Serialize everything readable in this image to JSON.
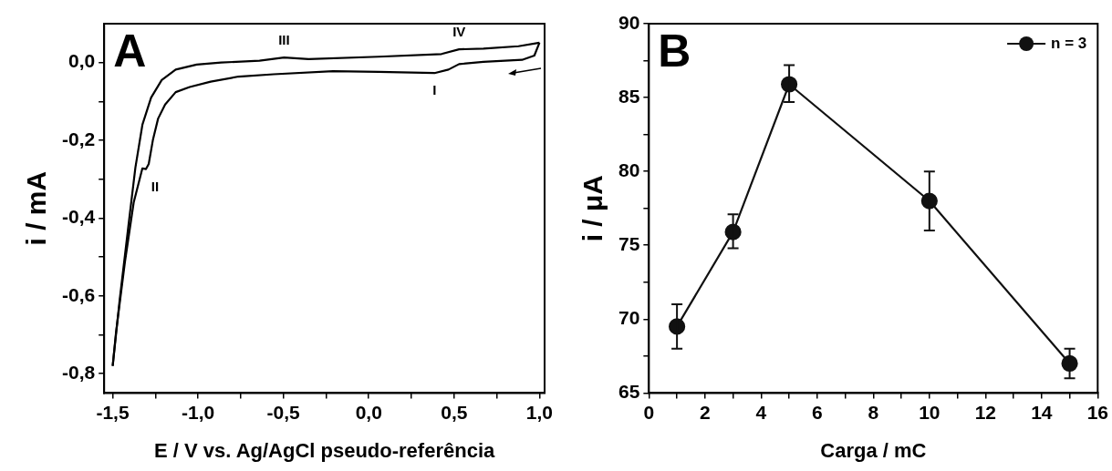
{
  "chart_data": [
    {
      "type": "line",
      "title": "A",
      "xlabel": "E / V vs. Ag/AgCl pseudo-referência",
      "ylabel": "i / mA",
      "xlim": [
        -1.55,
        1.03
      ],
      "ylim": [
        -0.85,
        0.1
      ],
      "xticks": [
        {
          "value": -1.5,
          "label": "-1,5"
        },
        {
          "value": -1.25,
          "label": null
        },
        {
          "value": -1.0,
          "label": "-1,0"
        },
        {
          "value": -0.75,
          "label": null
        },
        {
          "value": -0.5,
          "label": "-0,5"
        },
        {
          "value": -0.25,
          "label": null
        },
        {
          "value": 0,
          "label": "0,0"
        },
        {
          "value": 0.25,
          "label": null
        },
        {
          "value": 0.5,
          "label": "0,5"
        },
        {
          "value": 0.75,
          "label": null
        },
        {
          "value": 1.0,
          "label": "1,0"
        }
      ],
      "yticks": [
        {
          "value": -0.8,
          "label": "-0,8"
        },
        {
          "value": -0.7,
          "label": null
        },
        {
          "value": -0.6,
          "label": "-0,6"
        },
        {
          "value": -0.5,
          "label": null
        },
        {
          "value": -0.4,
          "label": "-0,4"
        },
        {
          "value": -0.3,
          "label": null
        },
        {
          "value": -0.2,
          "label": "-0,2"
        },
        {
          "value": -0.1,
          "label": null
        },
        {
          "value": 0,
          "label": "0,0"
        }
      ],
      "legend": false,
      "marker": "none",
      "grid": false,
      "annotations": [
        {
          "text": "I",
          "x": 0.385,
          "y": -0.027
        },
        {
          "text": "II",
          "x": -1.305,
          "y": -0.274
        },
        {
          "text": "III",
          "x": -0.496,
          "y": 0.013
        },
        {
          "text": "IV",
          "x": 0.529,
          "y": 0.034
        }
      ],
      "series": [
        {
          "color": "#000000",
          "x": [
            -1.5,
            -1.459,
            -1.408,
            -1.367,
            -1.326,
            -1.275,
            -1.213,
            -1.131,
            -1.008,
            -0.865,
            -0.64,
            -0.496,
            -0.352,
            0.057,
            0.426,
            0.529,
            0.672,
            0.877,
            1.0
          ],
          "values": [
            -0.78,
            -0.61,
            -0.42,
            -0.27,
            -0.16,
            -0.09,
            -0.045,
            -0.018,
            -0.005,
            0,
            0.005,
            0.013,
            0.009,
            0.015,
            0.022,
            0.034,
            0.036,
            0.042,
            0.051
          ]
        },
        {
          "color": "#000000",
          "x": [
            1.0,
            0.97,
            0.898,
            0.672,
            0.529,
            0.467,
            0.385,
            0.057,
            -0.209,
            -0.557,
            -0.762,
            -0.926,
            -1.049,
            -1.131,
            -1.193,
            -1.234,
            -1.264,
            -1.289,
            -1.305,
            -1.326,
            -1.377,
            -1.428,
            -1.48,
            -1.5
          ],
          "values": [
            0.051,
            0.018,
            0.007,
            0.002,
            -0.004,
            -0.018,
            -0.027,
            -0.024,
            -0.022,
            -0.03,
            -0.036,
            -0.049,
            -0.063,
            -0.076,
            -0.108,
            -0.144,
            -0.198,
            -0.261,
            -0.274,
            -0.272,
            -0.36,
            -0.512,
            -0.692,
            -0.78
          ]
        }
      ]
    },
    {
      "type": "line",
      "title": "B",
      "xlabel": "Carga / mC",
      "ylabel": "i / μA",
      "xlim": [
        0,
        16
      ],
      "ylim": [
        65,
        90
      ],
      "xticks": [
        0,
        {
          "value": 1,
          "label": null
        },
        2,
        {
          "value": 3,
          "label": null
        },
        4,
        {
          "value": 5,
          "label": null
        },
        6,
        {
          "value": 7,
          "label": null
        },
        8,
        {
          "value": 9,
          "label": null
        },
        10,
        {
          "value": 11,
          "label": null
        },
        12,
        {
          "value": 13,
          "label": null
        },
        14,
        {
          "value": 15,
          "label": null
        },
        16
      ],
      "yticks": [
        65,
        {
          "value": 67.5,
          "label": null
        },
        70,
        {
          "value": 72.5,
          "label": null
        },
        75,
        {
          "value": 77.5,
          "label": null
        },
        80,
        {
          "value": 82.5,
          "label": null
        },
        85,
        {
          "value": 87.5,
          "label": null
        },
        90
      ],
      "legend": "top right",
      "marker": "circle",
      "grid": false,
      "series": [
        {
          "name": "n = 3",
          "color": "#111111",
          "x": [
            1,
            3,
            5,
            10,
            15
          ],
          "values": [
            69.5,
            75.9,
            85.9,
            78,
            67
          ],
          "errors": [
            [
              68,
              71
            ],
            [
              74.8,
              77.1
            ],
            [
              84.7,
              87.2
            ],
            [
              76,
              80
            ],
            [
              66,
              68
            ]
          ]
        }
      ]
    }
  ]
}
